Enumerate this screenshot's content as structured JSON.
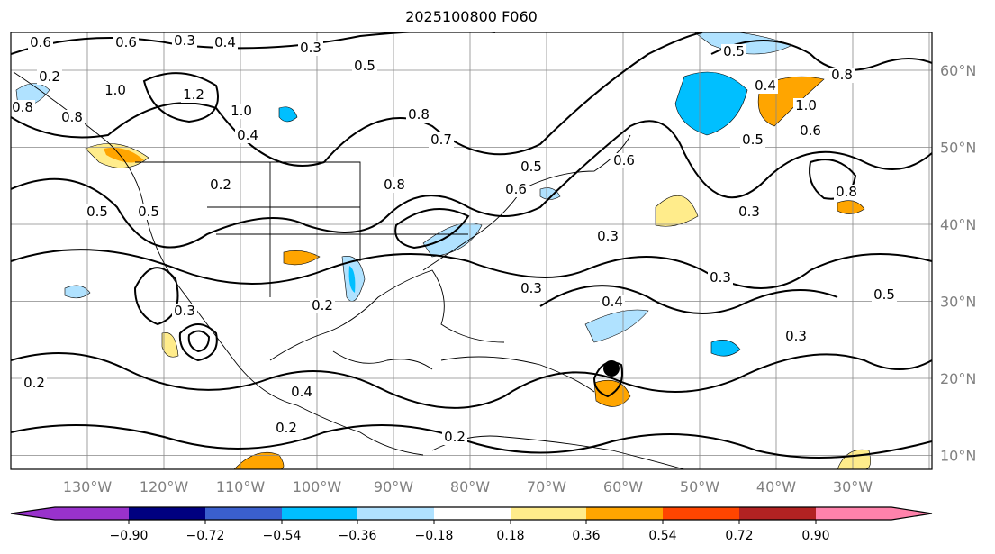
{
  "title": "2025100800 F060",
  "lon_labels": [
    "130°W",
    "120°W",
    "110°W",
    "100°W",
    "90°W",
    "80°W",
    "70°W",
    "60°W",
    "50°W",
    "40°W",
    "30°W"
  ],
  "lat_labels": [
    "60°N",
    "50°N",
    "40°N",
    "30°N",
    "20°N",
    "10°N"
  ],
  "colorbar": {
    "ticks": [
      "−0.90",
      "−0.72",
      "−0.54",
      "−0.36",
      "−0.18",
      "0.18",
      "0.36",
      "0.54",
      "0.72",
      "0.90"
    ],
    "colors": [
      "#9932cc",
      "#000080",
      "#3a5fcd",
      "#00bfff",
      "#b0e2ff",
      "#ffffff",
      "#ffec8b",
      "#ffa500",
      "#ff4500",
      "#b22222",
      "#ff82ab"
    ]
  },
  "contour_labels": [
    "0.6",
    "0.6",
    "0.3",
    "0.4",
    "0.3",
    "0.5",
    "0.8",
    "1.0",
    "1.2",
    "1.0",
    "0.8",
    "0.4",
    "0.5",
    "0.8",
    "0.7",
    "0.6",
    "0.6",
    "0.5",
    "0.3",
    "0.3",
    "0.3",
    "0.2",
    "0.4",
    "0.2",
    "0.2",
    "0.2",
    "0.4",
    "0.5",
    "0.8",
    "0.5",
    "1.0",
    "0.8",
    "0.6",
    "0.3",
    "0.8",
    "0.4",
    "0.3",
    "0.3",
    "0.5",
    "0.5",
    "0.2",
    "0.2"
  ]
}
